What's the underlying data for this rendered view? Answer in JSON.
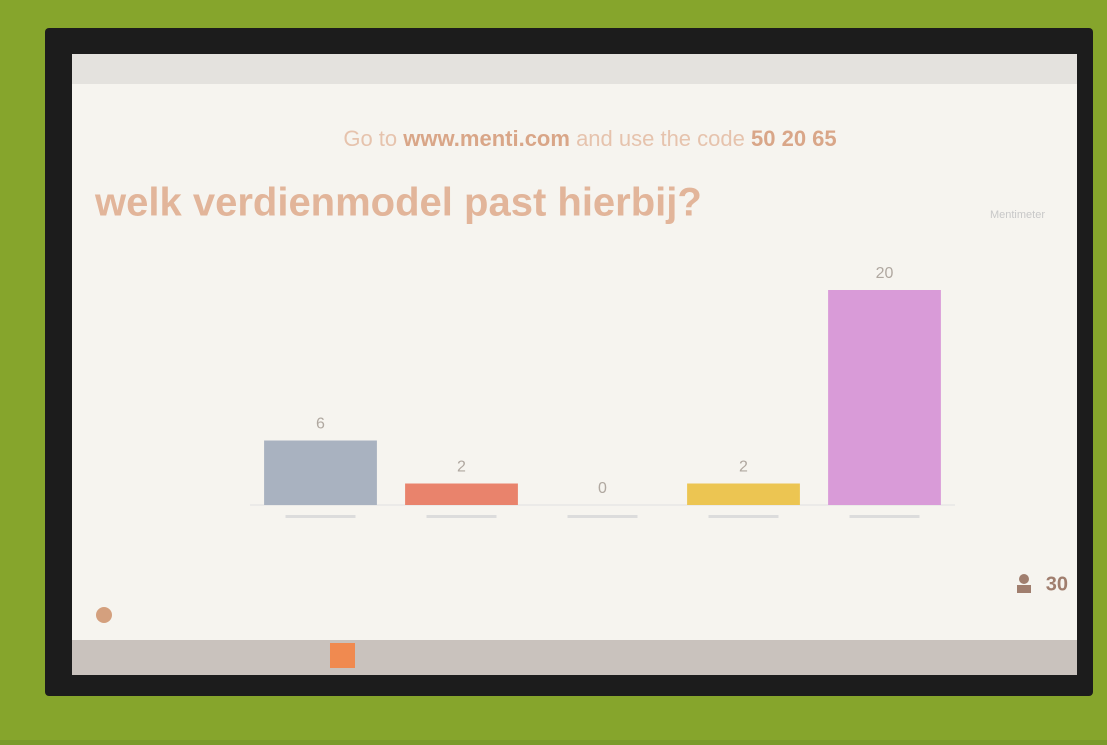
{
  "instruction": {
    "prefix": "Go to",
    "url": "www.menti.com",
    "middle": "and use the code",
    "code": "50 20 65"
  },
  "brand": "Mentimeter",
  "participants": 30,
  "chart_data": {
    "type": "bar",
    "title": "welk verdienmodel past hierbij?",
    "categories": [
      null,
      null,
      null,
      null,
      null
    ],
    "values": [
      6,
      2,
      0,
      2,
      20
    ],
    "colors": [
      "#a9b2c0",
      "#e9836c",
      "#c9c9c9",
      "#ecc552",
      "#d99bd8"
    ]
  }
}
